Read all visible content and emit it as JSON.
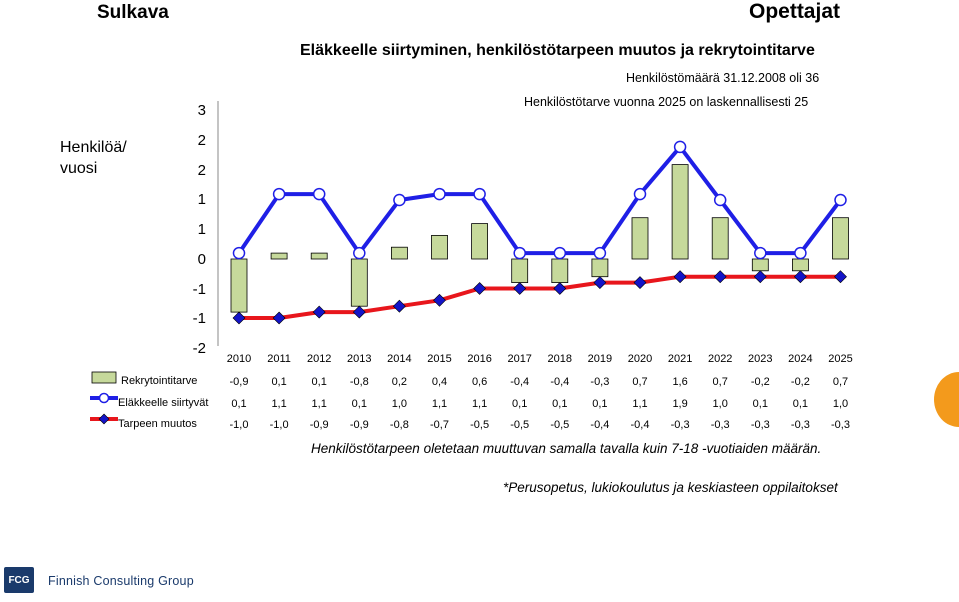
{
  "header": {
    "left_title": "Sulkava",
    "right_title": "Opettajat",
    "chart_title": "Eläkkeelle siirtyminen, henkilöstötarpeen muutos ja rekrytointitarve",
    "note_line1": "Henkilöstömäärä 31.12.2008 oli 36",
    "note_line2": "Henkilöstötarve vuonna 2025 on laskennallisesti 25"
  },
  "footer": {
    "footnote1": "Henkilöstötarpeen oletetaan muuttuvan samalla tavalla kuin 7-18 -vuotiaiden määrän.",
    "footnote2": "*Perusopetus, lukiokoulutus ja keskiasteen oppilaitokset",
    "logo_mark": "FCG",
    "logo_text": "Finnish Consulting Group"
  },
  "colors": {
    "bar_fill": "#c6d99b",
    "bar_stroke": "#000000",
    "retirement_line": "#1f1fe6",
    "retirement_marker": "#ffffff",
    "need_line": "#e8161c",
    "need_marker": "#1414c8",
    "accent_orange": "#f39a1c",
    "logo_blue": "#1a3a6b"
  },
  "chart_data": {
    "type": "bar+line",
    "ylabel": "Henkilöä/ vuosi",
    "ytick_labels": [
      "3",
      "2",
      "2",
      "1",
      "1",
      "0",
      "-1",
      "-1",
      "-2"
    ],
    "ylim": [
      -2,
      3
    ],
    "grid": false,
    "legend": "table-rows-left",
    "categories": [
      "2010",
      "2011",
      "2012",
      "2013",
      "2014",
      "2015",
      "2016",
      "2017",
      "2018",
      "2019",
      "2020",
      "2021",
      "2022",
      "2023",
      "2024",
      "2025"
    ],
    "series": [
      {
        "name": "Rekrytointitarve",
        "kind": "bar",
        "values": [
          -0.9,
          0.1,
          0.1,
          -0.8,
          0.2,
          0.4,
          0.6,
          -0.4,
          -0.4,
          -0.3,
          0.7,
          1.6,
          0.7,
          -0.2,
          -0.2,
          0.7
        ],
        "labels": [
          "-0,9",
          "0,1",
          "0,1",
          "-0,8",
          "0,2",
          "0,4",
          "0,6",
          "-0,4",
          "-0,4",
          "-0,3",
          "0,7",
          "1,6",
          "0,7",
          "-0,2",
          "-0,2",
          "0,7"
        ]
      },
      {
        "name": "Eläkkeelle siirtyvät",
        "kind": "line",
        "values": [
          0.1,
          1.1,
          1.1,
          0.1,
          1.0,
          1.1,
          1.1,
          0.1,
          0.1,
          0.1,
          1.1,
          1.9,
          1.0,
          0.1,
          0.1,
          1.0
        ],
        "labels": [
          "0,1",
          "1,1",
          "1,1",
          "0,1",
          "1,0",
          "1,1",
          "1,1",
          "0,1",
          "0,1",
          "0,1",
          "1,1",
          "1,9",
          "1,0",
          "0,1",
          "0,1",
          "1,0"
        ]
      },
      {
        "name": "Tarpeen muutos",
        "kind": "line",
        "values": [
          -1.0,
          -1.0,
          -0.9,
          -0.9,
          -0.8,
          -0.7,
          -0.5,
          -0.5,
          -0.5,
          -0.4,
          -0.4,
          -0.3,
          -0.3,
          -0.3,
          -0.3,
          -0.3
        ],
        "labels": [
          "-1,0",
          "-1,0",
          "-0,9",
          "-0,9",
          "-0,8",
          "-0,7",
          "-0,5",
          "-0,5",
          "-0,5",
          "-0,4",
          "-0,4",
          "-0,3",
          "-0,3",
          "-0,3",
          "-0,3",
          "-0,3"
        ]
      }
    ]
  }
}
